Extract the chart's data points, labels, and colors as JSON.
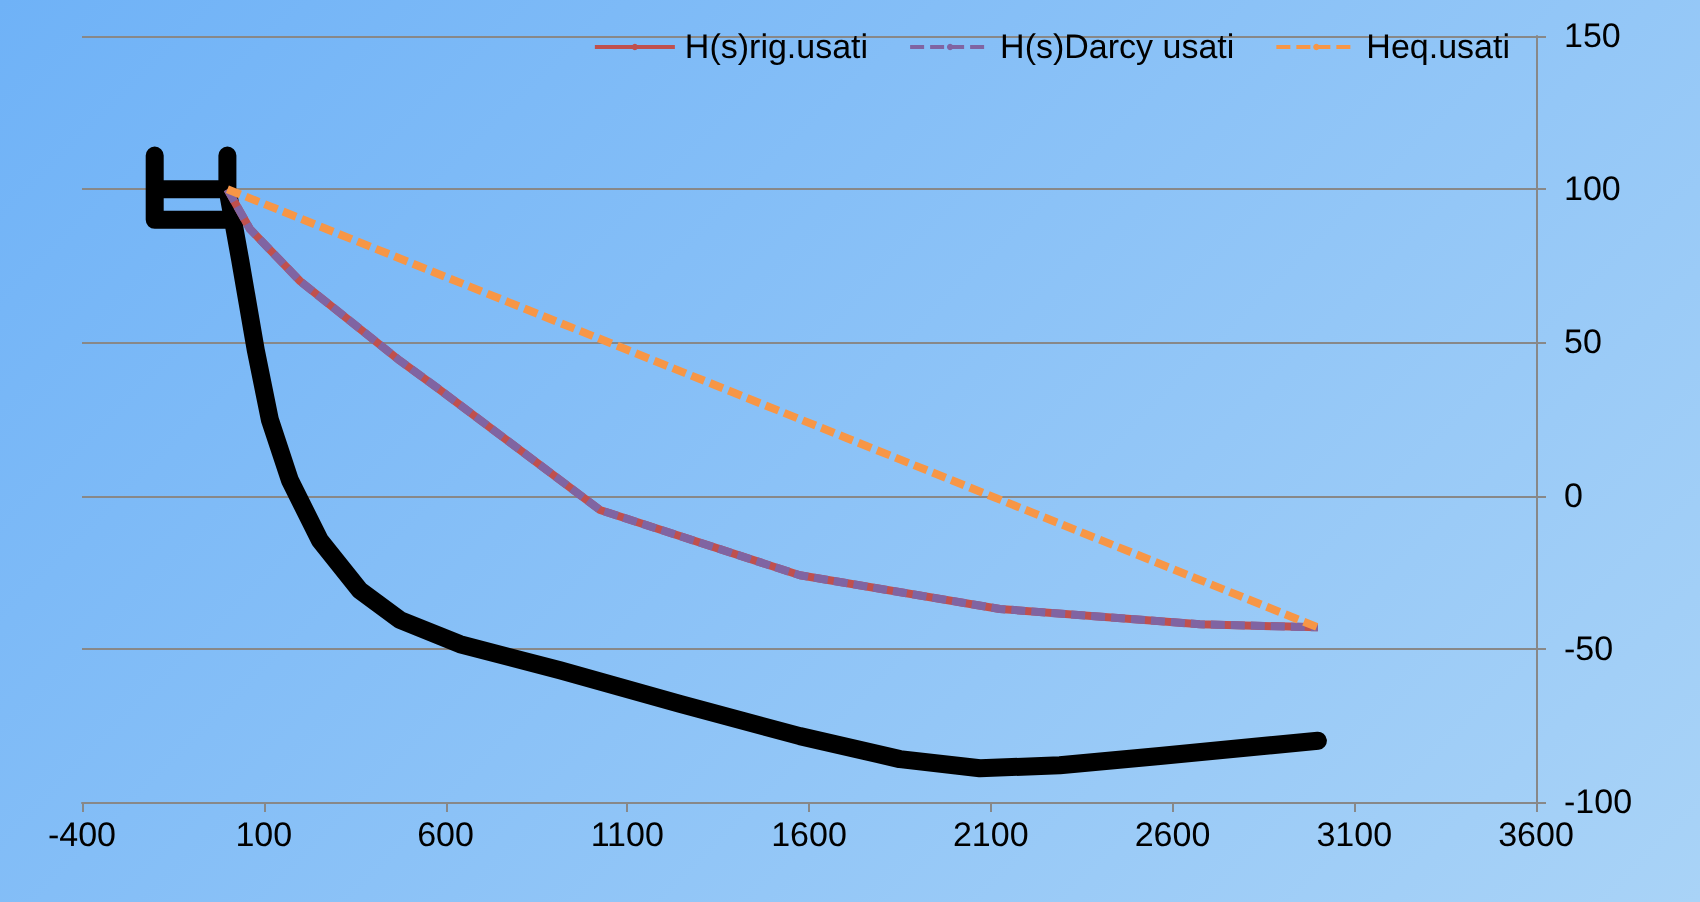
{
  "chart_data": {
    "type": "line",
    "xlim": [
      -400,
      3600
    ],
    "xticks": [
      -400,
      100,
      600,
      1100,
      1600,
      2100,
      2600,
      3100,
      3600
    ],
    "ylim": [
      -100,
      150
    ],
    "yticks": [
      -100,
      -50,
      0,
      50,
      100,
      150
    ],
    "grid": "y",
    "legend": "top right",
    "marker": "none",
    "series": [
      {
        "color": "#000000",
        "x": [
          -200,
          -200,
          0,
          null,
          -200,
          0,
          null,
          0,
          0,
          35,
          78,
          117,
          172,
          254,
          365,
          475,
          640,
          915,
          1245,
          1575,
          1850,
          2070,
          2290,
          2565,
          3000
        ],
        "values": [
          111,
          90,
          90,
          null,
          100,
          100,
          null,
          111,
          100,
          77,
          47.5,
          24.7,
          5,
          -14.5,
          -31,
          -40.6,
          -48.5,
          -57,
          -68,
          -78.5,
          -86,
          -89,
          -88,
          -85,
          -80
        ]
      },
      {
        "name": "H(s)rig.usati",
        "color": "#c0504d",
        "line_style": "solid",
        "x": [
          0,
          62,
          200,
          475,
          585,
          1025,
          1575,
          2125,
          2675,
          3000
        ],
        "values": [
          100,
          87,
          70,
          44,
          34.5,
          -4.7,
          -26,
          -37,
          -42,
          -43
        ]
      },
      {
        "name": "H(s)Darcy usati",
        "color": "#8064a2",
        "line_style": "dashed",
        "x": [
          0,
          62,
          200,
          475,
          585,
          1025,
          1575,
          2125,
          2675,
          3000
        ],
        "values": [
          100,
          87,
          70,
          44,
          34.5,
          -4.7,
          -26,
          -37,
          -42,
          -43
        ]
      },
      {
        "name": "Heq.usati",
        "color": "#f79646",
        "line_style": "dashed",
        "x": [
          0,
          3000
        ],
        "values": [
          100,
          -43
        ]
      }
    ]
  }
}
